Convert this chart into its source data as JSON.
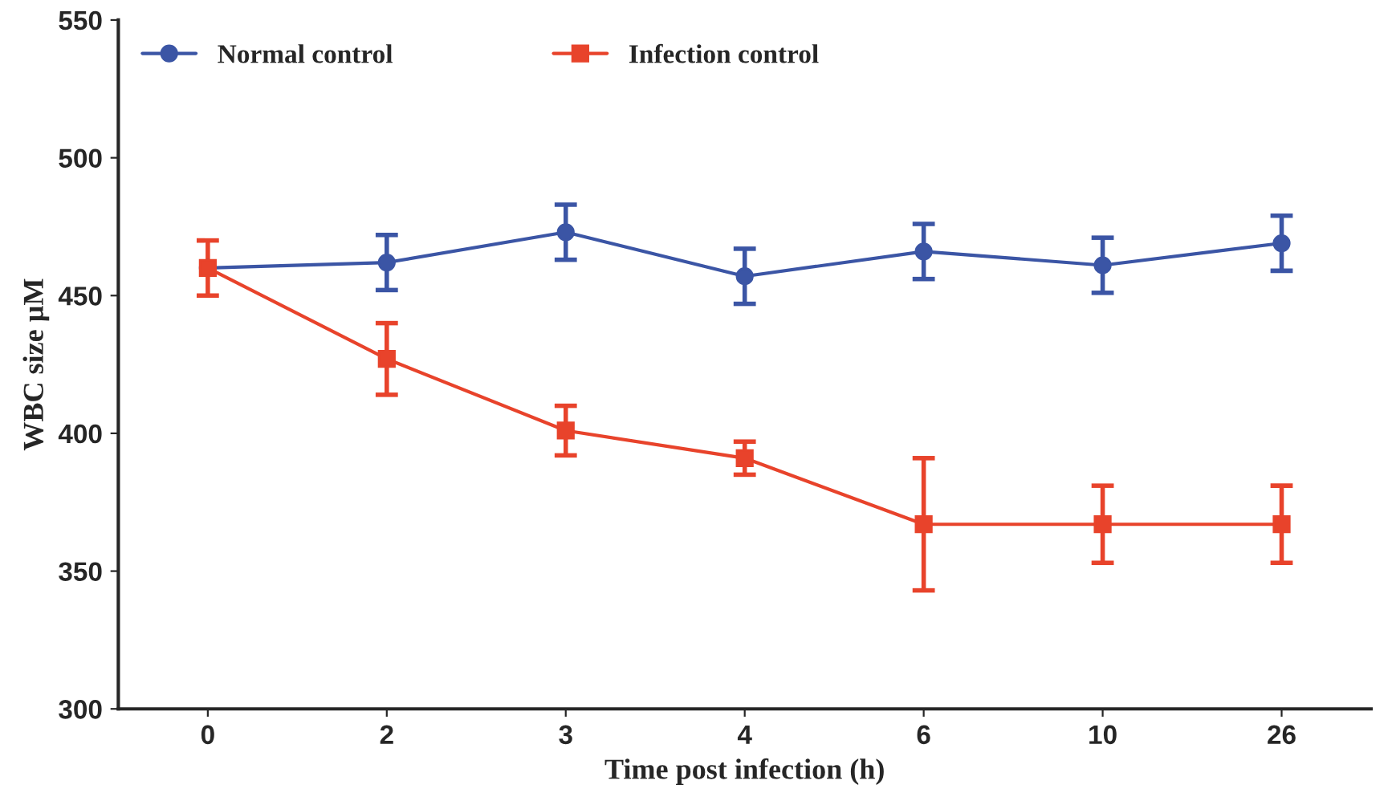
{
  "chart_data": {
    "type": "line",
    "xlabel": "Time post infection (h)",
    "ylabel": "WBC size µM",
    "categories": [
      "0",
      "2",
      "3",
      "4",
      "6",
      "10",
      "26"
    ],
    "series": [
      {
        "name": "Normal control",
        "color": "#3b55a5",
        "marker": "circle",
        "values": [
          460,
          462,
          473,
          457,
          466,
          461,
          469
        ],
        "errors": [
          null,
          10,
          10,
          10,
          10,
          10,
          10
        ]
      },
      {
        "name": "Infection control",
        "color": "#e8432b",
        "marker": "square",
        "values": [
          460,
          427,
          401,
          391,
          367,
          367,
          367
        ],
        "errors": [
          10,
          13,
          9,
          6,
          24,
          14,
          14
        ]
      }
    ],
    "ylim": [
      300,
      550
    ],
    "yticks": [
      300,
      350,
      400,
      450,
      500,
      550
    ],
    "grid": false,
    "legend": "top left",
    "line_style": "solid"
  }
}
